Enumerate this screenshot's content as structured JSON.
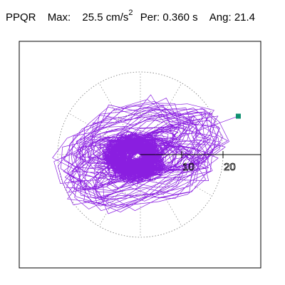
{
  "header": {
    "station": "PPQR",
    "max_label": "Max:",
    "max_value": "25.5",
    "max_unit": "cm/s",
    "max_exp": "2",
    "per_label": "Per:",
    "per_value": "0.360 s",
    "ang_label": "Ang:",
    "ang_value": "21.4"
  },
  "chart_data": {
    "type": "line",
    "title": "",
    "xlabel": "",
    "ylabel": "",
    "xlim": [
      -26,
      26
    ],
    "ylim": [
      -26,
      26
    ],
    "grid": "polar-dotted",
    "radial_ticks": [
      "10",
      "20"
    ],
    "radial_tick_values": [
      10,
      20
    ],
    "polar_rings": [
      10,
      20
    ],
    "spoke_angles_deg": [
      0,
      30,
      60,
      90,
      120,
      150,
      180,
      210,
      240,
      270,
      300,
      330
    ],
    "max_vector_angle_deg": 21.4,
    "max_vector_magnitude": 25.5,
    "max_point": [
      23.7,
      9.3
    ],
    "orbit_color": "#8a1ee0",
    "marker_color": "#109070"
  }
}
